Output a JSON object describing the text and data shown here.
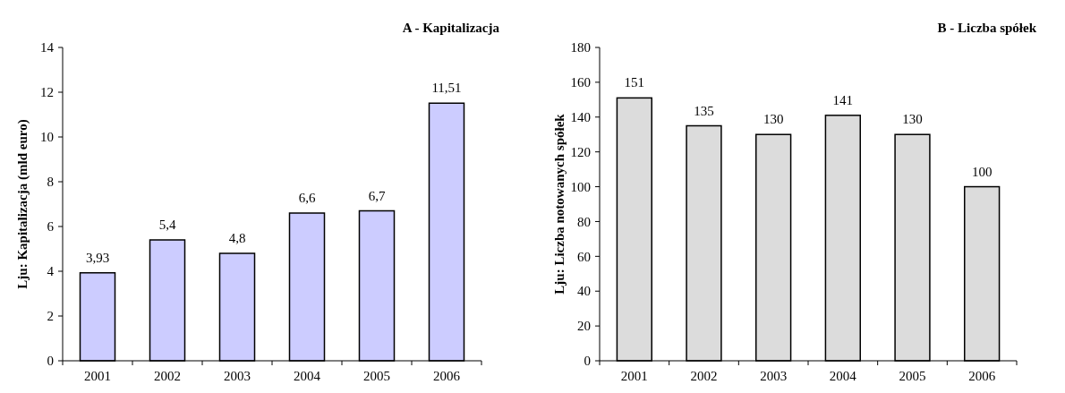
{
  "chart_data": [
    {
      "type": "bar",
      "title": "A - Kapitalizacja",
      "ylabel": "Lju: Kapitalizacja (mld euro)",
      "categories": [
        "2001",
        "2002",
        "2003",
        "2004",
        "2005",
        "2006"
      ],
      "values": [
        3.93,
        5.4,
        4.8,
        6.6,
        6.7,
        11.51
      ],
      "value_labels": [
        "3,93",
        "5,4",
        "4,8",
        "6,6",
        "6,7",
        "11,51"
      ],
      "color": "#ccccff",
      "ylim": [
        0,
        14
      ],
      "yticks": [
        0,
        2,
        4,
        6,
        8,
        10,
        12,
        14
      ]
    },
    {
      "type": "bar",
      "title": "B - Liczba spółek",
      "ylabel": "Lju: Liczba notowanych spółek",
      "categories": [
        "2001",
        "2002",
        "2003",
        "2004",
        "2005",
        "2006"
      ],
      "values": [
        151,
        135,
        130,
        141,
        130,
        100
      ],
      "value_labels": [
        "151",
        "135",
        "130",
        "141",
        "130",
        "100"
      ],
      "color": "#dcdcdc",
      "ylim": [
        0,
        180
      ],
      "yticks": [
        0,
        20,
        40,
        60,
        80,
        100,
        120,
        140,
        160,
        180
      ]
    }
  ]
}
